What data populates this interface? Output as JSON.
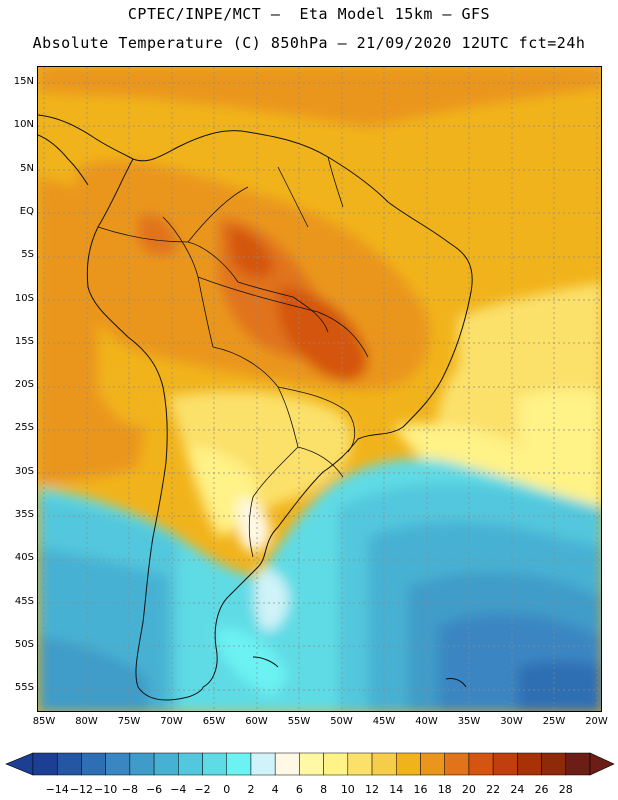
{
  "header": {
    "line1": "CPTEC/INPE/MCT —  Eta Model 15km — GFS",
    "line2": "Absolute Temperature (C) 850hPa — 21/09/2020 12UTC fct=24h"
  },
  "map": {
    "lat_labels": [
      "15N",
      "10N",
      "5N",
      "EQ",
      "5S",
      "10S",
      "15S",
      "20S",
      "25S",
      "30S",
      "35S",
      "40S",
      "45S",
      "50S",
      "55S"
    ],
    "lon_labels": [
      "85W",
      "80W",
      "75W",
      "70W",
      "65W",
      "60W",
      "55W",
      "50W",
      "45W",
      "40W",
      "35W",
      "30W",
      "25W",
      "20W"
    ],
    "lat_range": [
      -58,
      16.5
    ],
    "lon_range": [
      -86.5,
      -20
    ]
  },
  "colorbar": {
    "colors": [
      "#1c3f94",
      "#2556a3",
      "#2e6eb3",
      "#3a86c2",
      "#3f9cc8",
      "#47b1d3",
      "#52c7dd",
      "#5edbe5",
      "#6cf2f2",
      "#cff3f8",
      "#fff8e4",
      "#fff9a6",
      "#fff287",
      "#fbe06a",
      "#f6cc4b",
      "#f1b31b",
      "#ea961c",
      "#e1731a",
      "#d45511",
      "#c13e0e",
      "#a83207",
      "#8e2a0a",
      "#6b1d16"
    ],
    "ticks": [
      "-14",
      "-12",
      "-10",
      "-8",
      "-6",
      "-4",
      "-2",
      "0",
      "2",
      "4",
      "6",
      "8",
      "10",
      "12",
      "14",
      "16",
      "18",
      "20",
      "22",
      "24",
      "26",
      "28"
    ]
  }
}
